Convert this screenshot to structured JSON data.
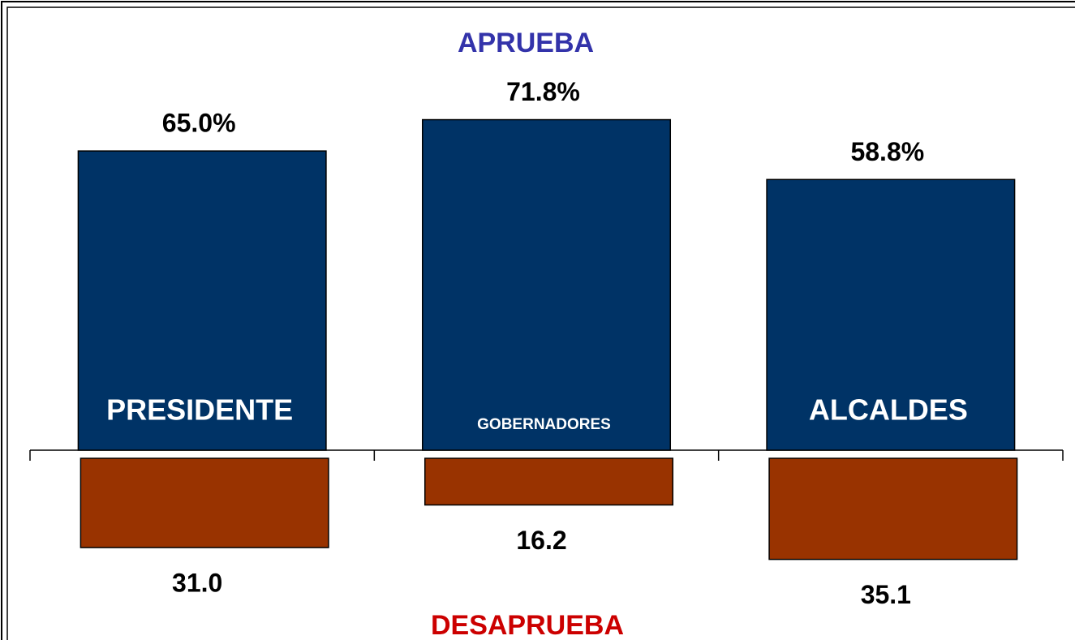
{
  "chart_data": {
    "type": "bar",
    "title": "APRUEBA",
    "subtitle": "DESAPRUEBA",
    "categories": [
      "PRESIDENTE",
      "GOBERNADORES",
      "ALCALDES"
    ],
    "series": [
      {
        "name": "APRUEBA",
        "color": "#003366",
        "values": [
          65.0,
          71.8,
          58.8
        ],
        "value_labels": [
          "65.0%",
          "71.8%",
          "58.8%"
        ]
      },
      {
        "name": "DESAPRUEBA",
        "color": "#993300",
        "axis": "y2",
        "values": [
          31.0,
          16.2,
          35.1
        ],
        "value_labels": [
          "31.0",
          "16.2",
          "35.1"
        ]
      }
    ],
    "ylim": [
      0,
      80
    ],
    "y2lim": [
      0,
      60
    ]
  }
}
